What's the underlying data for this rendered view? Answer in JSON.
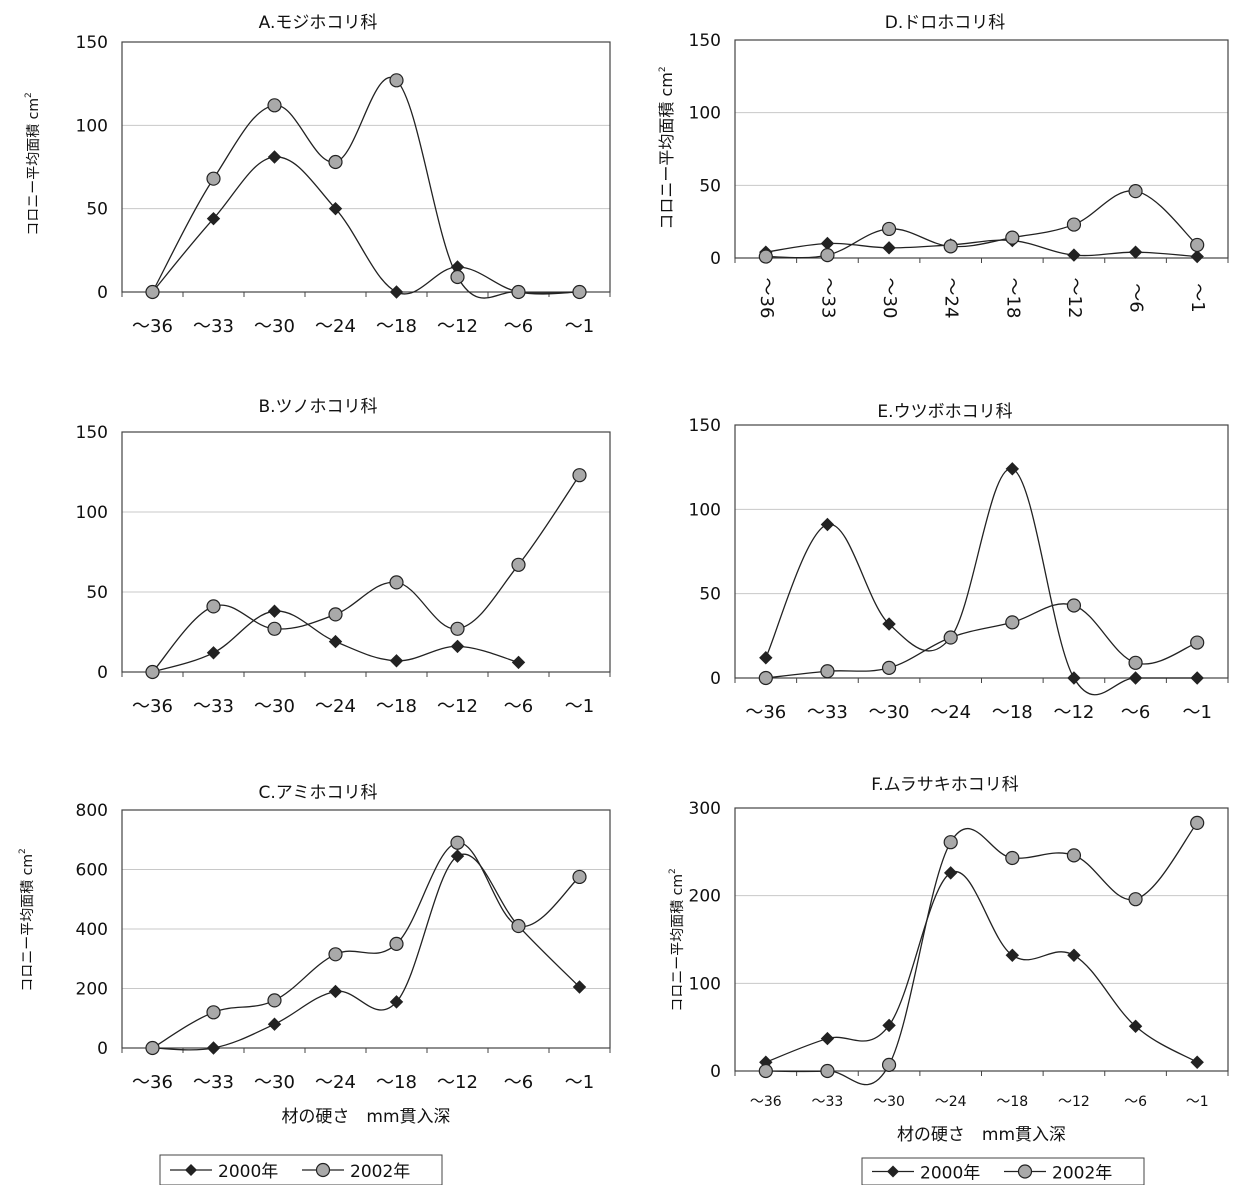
{
  "chart_data": [
    {
      "type": "line",
      "title": "A.モジホコリ科",
      "ylabel": "コロニー平均面積",
      "yunit": "cm",
      "yunit_sup": "2",
      "xlabel": "",
      "categories": [
        "～36",
        "～33",
        "～30",
        "～24",
        "～18",
        "～12",
        "～6",
        "～1"
      ],
      "yticks": [
        0,
        50,
        100,
        150
      ],
      "ylim": [
        0,
        150
      ],
      "series": [
        {
          "name": "2000年",
          "marker": "diamond",
          "values": [
            0,
            44,
            81,
            50,
            0,
            15,
            0,
            0
          ]
        },
        {
          "name": "2002年",
          "marker": "circle",
          "values": [
            0,
            68,
            112,
            78,
            127,
            9,
            0,
            0
          ]
        }
      ]
    },
    {
      "type": "line",
      "title": "D.ドロホコリ科",
      "ylabel": "コロニー平均面積",
      "yunit": "cm",
      "yunit_sup": "2",
      "xlabel": "",
      "categories": [
        "～36",
        "～33",
        "～30",
        "～24",
        "～18",
        "～12",
        "～6",
        "～1"
      ],
      "yticks": [
        0,
        50,
        100,
        150
      ],
      "ylim": [
        0,
        150
      ],
      "xtick_rotated": true,
      "series": [
        {
          "name": "2000年",
          "marker": "diamond",
          "values": [
            4,
            10,
            7,
            9,
            12,
            2,
            4,
            1
          ]
        },
        {
          "name": "2002年",
          "marker": "circle",
          "values": [
            1,
            2,
            20,
            8,
            14,
            23,
            46,
            9
          ]
        }
      ]
    },
    {
      "type": "line",
      "title": "B.ツノホコリ科",
      "ylabel": "",
      "xlabel": "",
      "categories": [
        "～36",
        "～33",
        "～30",
        "～24",
        "～18",
        "～12",
        "～6",
        "～1"
      ],
      "yticks": [
        0,
        50,
        100,
        150
      ],
      "ylim": [
        0,
        150
      ],
      "series": [
        {
          "name": "2000年",
          "marker": "diamond",
          "values": [
            0,
            12,
            38,
            19,
            7,
            16,
            6,
            null
          ]
        },
        {
          "name": "2002年",
          "marker": "circle",
          "values": [
            0,
            41,
            27,
            36,
            56,
            27,
            67,
            123
          ]
        }
      ]
    },
    {
      "type": "line",
      "title": "E.ウツボホコリ科",
      "ylabel": "",
      "xlabel": "",
      "categories": [
        "～36",
        "～33",
        "～30",
        "～24",
        "～18",
        "～12",
        "～6",
        "～1"
      ],
      "yticks": [
        0,
        50,
        100,
        150
      ],
      "ylim": [
        0,
        150
      ],
      "series": [
        {
          "name": "2000年",
          "marker": "diamond",
          "values": [
            12,
            91,
            32,
            24,
            124,
            0,
            0,
            0
          ]
        },
        {
          "name": "2002年",
          "marker": "circle",
          "values": [
            0,
            4,
            6,
            24,
            33,
            43,
            9,
            21
          ]
        }
      ]
    },
    {
      "type": "line",
      "title": "C.アミホコリ科",
      "ylabel": "コロニー平均面積",
      "yunit": "cm",
      "yunit_sup": "2",
      "xlabel": "材の硬さ　mm貫入深",
      "categories": [
        "～36",
        "～33",
        "～30",
        "～24",
        "～18",
        "～12",
        "～6",
        "～1"
      ],
      "yticks": [
        0,
        200,
        400,
        600,
        800
      ],
      "ylim": [
        0,
        800
      ],
      "series": [
        {
          "name": "2000年",
          "marker": "diamond",
          "values": [
            0,
            0,
            80,
            190,
            155,
            645,
            410,
            205
          ]
        },
        {
          "name": "2002年",
          "marker": "circle",
          "values": [
            0,
            120,
            160,
            315,
            350,
            690,
            410,
            575
          ]
        }
      ]
    },
    {
      "type": "line",
      "title": "F.ムラサキホコリ科",
      "ylabel": "コロニー平均面積",
      "yunit": "cm",
      "yunit_sup": "2",
      "xlabel": "材の硬さ　mm貫入深",
      "categories": [
        "～36",
        "～33",
        "～30",
        "～24",
        "～18",
        "～12",
        "～6",
        "～1"
      ],
      "yticks": [
        0,
        100,
        200,
        300
      ],
      "ylim": [
        0,
        300
      ],
      "small_xticks": true,
      "series": [
        {
          "name": "2000年",
          "marker": "diamond",
          "values": [
            10,
            37,
            52,
            226,
            132,
            132,
            51,
            10
          ]
        },
        {
          "name": "2002年",
          "marker": "circle",
          "values": [
            0,
            0,
            7,
            261,
            243,
            246,
            196,
            283
          ]
        }
      ]
    }
  ],
  "legends": [
    {
      "items": [
        "2000年",
        "2002年"
      ]
    },
    {
      "items": [
        "2000年",
        "2002年"
      ]
    }
  ],
  "colors": {
    "line": "#222222",
    "circle_fill": "#a9a9a9",
    "diamond_fill": "#222222",
    "grid": "#c8c8c8",
    "frame": "#444444"
  }
}
